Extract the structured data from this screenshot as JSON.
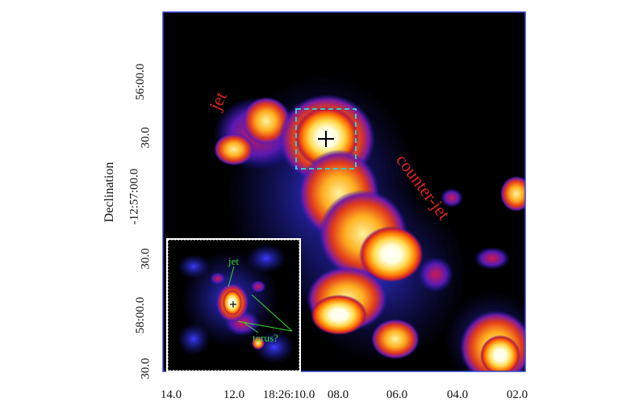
{
  "figure": {
    "y_axis_title": "Declination",
    "x_ticks": [
      "14.0",
      "12.0",
      "18:26:10.0",
      "08.0",
      "06.0",
      "04.0",
      "02.0"
    ],
    "y_ticks": [
      "56:00.0",
      "30.0",
      "-12:57:00.0",
      "30.0",
      "58:00.0",
      "30.0"
    ],
    "annotations": {
      "jet": "jet",
      "counter_jet": "counter-jet"
    },
    "inset": {
      "jet": "jet",
      "torus": "torus?"
    },
    "colors": {
      "background": "#000000",
      "frame": "#3344cc",
      "label_red": "#dd2222",
      "label_green": "#33dd33",
      "box": "#33cccc"
    }
  }
}
